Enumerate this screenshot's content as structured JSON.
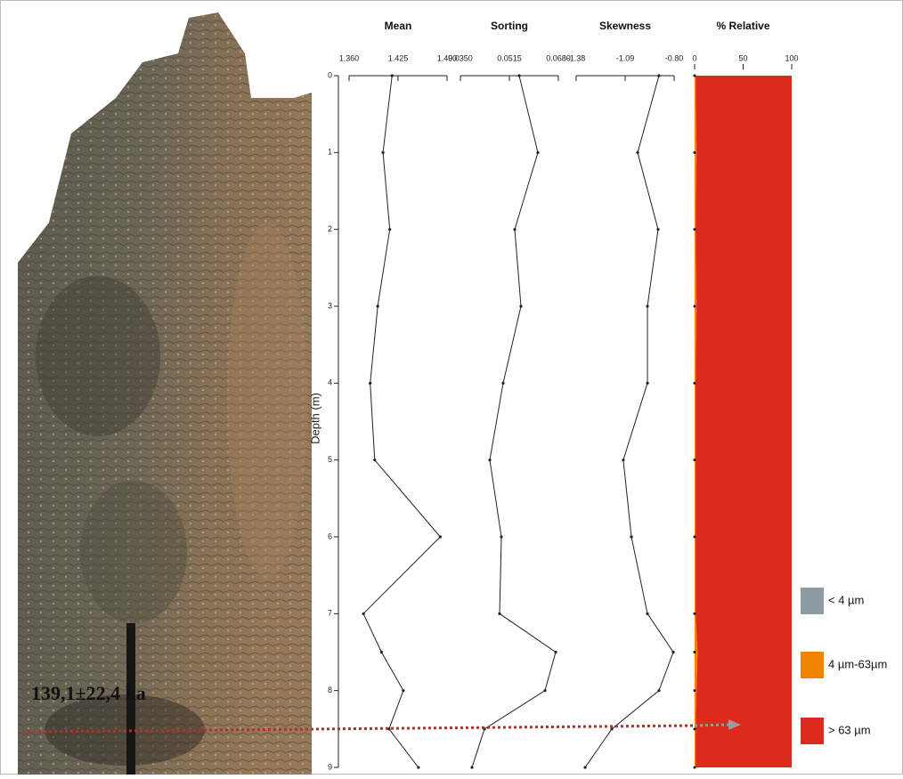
{
  "photo_annotation": "139,1±22,4 ka",
  "chart_data": [
    {
      "type": "line",
      "title": "Mean",
      "y_label": "Depth (m)",
      "y": [
        0,
        1,
        2,
        3,
        4,
        5,
        6,
        7,
        7.5,
        8,
        8.5,
        9
      ],
      "values": [
        1.417,
        1.405,
        1.414,
        1.398,
        1.388,
        1.394,
        1.481,
        1.379,
        1.403,
        1.432,
        1.413,
        1.452
      ],
      "xlim": [
        1.36,
        1.49
      ],
      "xticks": [
        {
          "value": 1.36,
          "label": "1.360"
        },
        1.425,
        {
          "value": 1.49,
          "label": "1.490"
        }
      ],
      "ylim": [
        0,
        9
      ],
      "yticks": [
        0,
        1,
        2,
        3,
        4,
        5,
        6,
        7,
        8,
        9
      ],
      "color": "#222222"
    },
    {
      "type": "line",
      "title": "Sorting",
      "y": [
        0,
        1,
        2,
        3,
        4,
        5,
        6,
        7,
        7.5,
        8,
        8.5,
        9
      ],
      "values": [
        0.0548,
        0.0611,
        0.0533,
        0.0554,
        0.0494,
        0.0449,
        0.0488,
        0.0482,
        0.0671,
        0.0635,
        0.0431,
        0.0389
      ],
      "xlim": [
        0.035,
        0.068
      ],
      "xticks": [
        {
          "value": 0.035,
          "label": "0.0350"
        },
        0.0515,
        {
          "value": 0.068,
          "label": "0.0680"
        }
      ],
      "ylim": [
        0,
        9
      ],
      "color": "#222222"
    },
    {
      "type": "line",
      "title": "Skewness",
      "y": [
        0,
        1,
        2,
        3,
        4,
        5,
        6,
        7,
        7.5,
        8,
        8.5,
        9
      ],
      "values": [
        -0.89,
        -1.016,
        -0.895,
        -0.958,
        -0.958,
        -1.101,
        -1.053,
        -0.958,
        -0.805,
        -0.89,
        -1.169,
        -1.327
      ],
      "xlim": [
        -1.38,
        -0.8
      ],
      "xticks": [
        -1.38,
        -1.09,
        {
          "value": -0.8,
          "label": "-0.80"
        }
      ],
      "ylim": [
        0,
        9
      ],
      "color": "#222222"
    },
    {
      "type": "area",
      "title": "% Relative",
      "y": [
        0,
        1,
        2,
        3,
        4,
        5,
        6,
        7,
        7.5,
        8,
        8.5,
        9
      ],
      "series": [
        {
          "name": "< 4 µm",
          "color": "#8d9ba3",
          "values": [
            0,
            0,
            0,
            0,
            0,
            0,
            0,
            0,
            0,
            0,
            0,
            0
          ]
        },
        {
          "name": "4 µm-63µm",
          "color": "#f08300",
          "values": [
            1,
            2,
            1,
            2,
            1,
            1,
            1,
            1,
            3,
            2,
            1,
            1
          ]
        },
        {
          "name": "> 63 µm",
          "color": "#dc2a1c",
          "values": [
            99,
            98,
            99,
            98,
            99,
            99,
            99,
            99,
            97,
            98,
            99,
            99
          ]
        }
      ],
      "xlim": [
        0,
        100
      ],
      "xticks": [
        0,
        50,
        100
      ],
      "ylim": [
        0,
        9
      ]
    }
  ]
}
